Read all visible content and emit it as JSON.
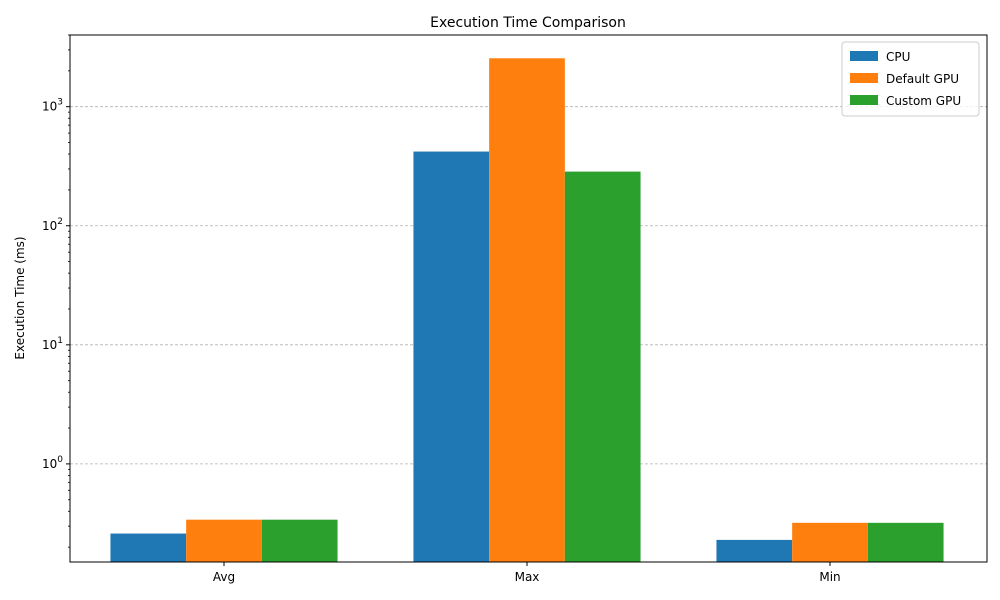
{
  "chart_data": {
    "type": "bar",
    "title": "Execution Time Comparison",
    "xlabel": "",
    "ylabel": "Execution Time (ms)",
    "yscale": "log",
    "ylim": [
      0.15,
      4000
    ],
    "yticks": [
      1,
      10,
      100,
      1000
    ],
    "ytick_labels": [
      {
        "base": "10",
        "exp": "0"
      },
      {
        "base": "10",
        "exp": "1"
      },
      {
        "base": "10",
        "exp": "2"
      },
      {
        "base": "10",
        "exp": "3"
      }
    ],
    "grid": "y-major-dashed",
    "legend_position": "top-right",
    "categories": [
      "Avg",
      "Max",
      "Min"
    ],
    "series": [
      {
        "name": "CPU",
        "color": "#1f77b4",
        "values": [
          0.26,
          420,
          0.23
        ]
      },
      {
        "name": "Default GPU",
        "color": "#ff7f0e",
        "values": [
          0.34,
          2550,
          0.32
        ]
      },
      {
        "name": "Custom GPU",
        "color": "#2ca02c",
        "values": [
          0.34,
          285,
          0.32
        ]
      }
    ]
  }
}
